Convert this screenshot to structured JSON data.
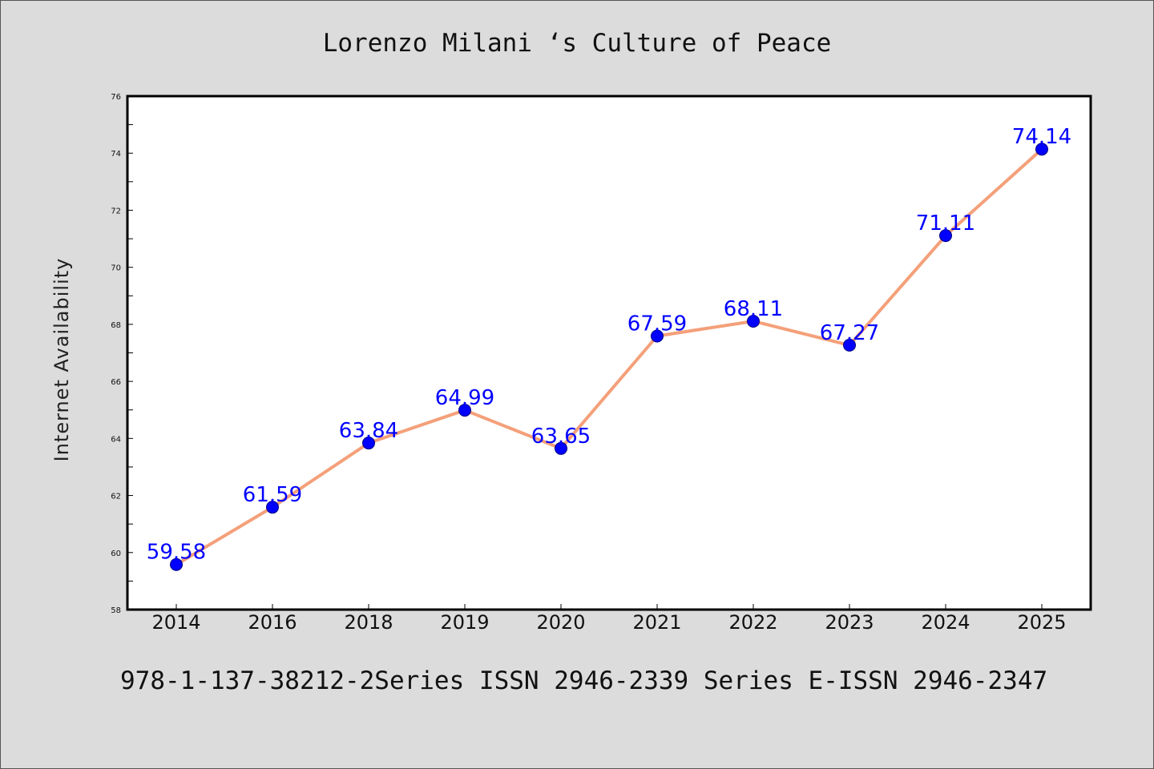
{
  "page": {
    "title": "Lorenzo Milani ‘s Culture of Peace",
    "footer": "978-1-137-38212-2Series ISSN 2946-2339 Series E-ISSN 2946-2347"
  },
  "chart_data": {
    "type": "line",
    "title": "Lorenzo Milani ‘s Culture of Peace",
    "xlabel": "",
    "ylabel": "Internet Availability",
    "categories": [
      "2014",
      "2016",
      "2018",
      "2019",
      "2020",
      "2021",
      "2022",
      "2023",
      "2024",
      "2025"
    ],
    "series": [
      {
        "values": [
          59.58,
          61.59,
          63.84,
          64.99,
          63.65,
          67.59,
          68.11,
          67.27,
          71.11,
          74.14
        ],
        "labels": [
          "59.58",
          "61.59",
          "63.84",
          "64.99",
          "63.65",
          "67.59",
          "68.11",
          "67.27",
          "71.11",
          "74.14"
        ]
      }
    ],
    "ylim": [
      58,
      76
    ],
    "yticks": [
      58,
      60,
      62,
      64,
      66,
      68,
      70,
      72,
      74,
      76
    ],
    "grid": false,
    "legend": "none",
    "colors": {
      "line": "#f4a07a",
      "marker": "#0000ff",
      "data_label": "#0000ff",
      "plot_background": "#ffffff",
      "page_background": "#dcdcdc"
    }
  }
}
